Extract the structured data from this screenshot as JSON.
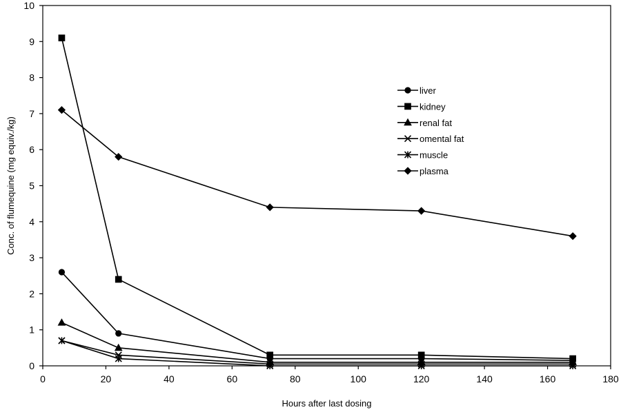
{
  "chart_data": {
    "type": "line",
    "title": "",
    "xlabel": "Hours after last dosing",
    "ylabel": "Conc. of flumequine  (mg equiv./kg)",
    "xlim": [
      0,
      180
    ],
    "ylim": [
      0,
      10
    ],
    "xticks": [
      0,
      20,
      40,
      60,
      80,
      100,
      120,
      140,
      160,
      180
    ],
    "yticks": [
      0,
      1,
      2,
      3,
      4,
      5,
      6,
      7,
      8,
      9,
      10
    ],
    "grid": false,
    "legend_position": "right-upper",
    "x": [
      6,
      24,
      72,
      120,
      168
    ],
    "series": [
      {
        "name": "liver",
        "marker": "circle",
        "values": [
          2.6,
          0.9,
          0.2,
          0.2,
          0.15
        ]
      },
      {
        "name": "kidney",
        "marker": "square",
        "values": [
          9.1,
          2.4,
          0.3,
          0.3,
          0.2
        ]
      },
      {
        "name": "renal fat",
        "marker": "triangle",
        "values": [
          1.2,
          0.5,
          0.1,
          0.1,
          0.1
        ]
      },
      {
        "name": "omental fat",
        "marker": "x",
        "values": [
          0.7,
          0.3,
          0.05,
          0.05,
          0.05
        ]
      },
      {
        "name": "muscle",
        "marker": "star",
        "values": [
          0.7,
          0.2,
          0.0,
          0.0,
          0.0
        ]
      },
      {
        "name": "plasma",
        "marker": "diamond",
        "values": [
          7.1,
          5.8,
          4.4,
          4.3,
          3.6
        ]
      }
    ]
  }
}
